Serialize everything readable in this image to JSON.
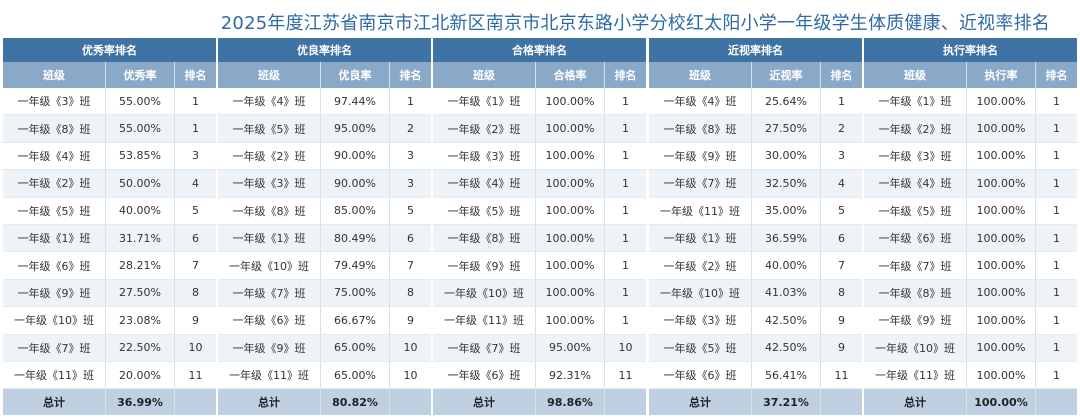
{
  "title": "2025年度江苏省南京市江北新区南京市北京东路小学分校红太阳小学一年级学生体质健康、近视率排名",
  "panels": [
    {
      "header": "优秀率排名",
      "col_class": "班级",
      "col_rate": "优秀率",
      "col_rank": "排名",
      "rows": [
        {
          "cls": "一年级《3》班",
          "rate": "55.00%",
          "rank": "1"
        },
        {
          "cls": "一年级《8》班",
          "rate": "55.00%",
          "rank": "1"
        },
        {
          "cls": "一年级《4》班",
          "rate": "53.85%",
          "rank": "3"
        },
        {
          "cls": "一年级《2》班",
          "rate": "50.00%",
          "rank": "4"
        },
        {
          "cls": "一年级《5》班",
          "rate": "40.00%",
          "rank": "5"
        },
        {
          "cls": "一年级《1》班",
          "rate": "31.71%",
          "rank": "6"
        },
        {
          "cls": "一年级《6》班",
          "rate": "28.21%",
          "rank": "7"
        },
        {
          "cls": "一年级《9》班",
          "rate": "27.50%",
          "rank": "8"
        },
        {
          "cls": "一年级《10》班",
          "rate": "23.08%",
          "rank": "9"
        },
        {
          "cls": "一年级《7》班",
          "rate": "22.50%",
          "rank": "10"
        },
        {
          "cls": "一年级《11》班",
          "rate": "20.00%",
          "rank": "11"
        }
      ],
      "total_label": "总计",
      "total_value": "36.99%"
    },
    {
      "header": "优良率排名",
      "col_class": "班级",
      "col_rate": "优良率",
      "col_rank": "排名",
      "rows": [
        {
          "cls": "一年级《4》班",
          "rate": "97.44%",
          "rank": "1"
        },
        {
          "cls": "一年级《5》班",
          "rate": "95.00%",
          "rank": "2"
        },
        {
          "cls": "一年级《2》班",
          "rate": "90.00%",
          "rank": "3"
        },
        {
          "cls": "一年级《3》班",
          "rate": "90.00%",
          "rank": "3"
        },
        {
          "cls": "一年级《8》班",
          "rate": "85.00%",
          "rank": "5"
        },
        {
          "cls": "一年级《1》班",
          "rate": "80.49%",
          "rank": "6"
        },
        {
          "cls": "一年级《10》班",
          "rate": "79.49%",
          "rank": "7"
        },
        {
          "cls": "一年级《7》班",
          "rate": "75.00%",
          "rank": "8"
        },
        {
          "cls": "一年级《6》班",
          "rate": "66.67%",
          "rank": "9"
        },
        {
          "cls": "一年级《9》班",
          "rate": "65.00%",
          "rank": "10"
        },
        {
          "cls": "一年级《11》班",
          "rate": "65.00%",
          "rank": "10"
        }
      ],
      "total_label": "总计",
      "total_value": "80.82%"
    },
    {
      "header": "合格率排名",
      "col_class": "班级",
      "col_rate": "合格率",
      "col_rank": "排名",
      "rows": [
        {
          "cls": "一年级《1》班",
          "rate": "100.00%",
          "rank": "1"
        },
        {
          "cls": "一年级《2》班",
          "rate": "100.00%",
          "rank": "1"
        },
        {
          "cls": "一年级《3》班",
          "rate": "100.00%",
          "rank": "1"
        },
        {
          "cls": "一年级《4》班",
          "rate": "100.00%",
          "rank": "1"
        },
        {
          "cls": "一年级《5》班",
          "rate": "100.00%",
          "rank": "1"
        },
        {
          "cls": "一年级《8》班",
          "rate": "100.00%",
          "rank": "1"
        },
        {
          "cls": "一年级《9》班",
          "rate": "100.00%",
          "rank": "1"
        },
        {
          "cls": "一年级《10》班",
          "rate": "100.00%",
          "rank": "1"
        },
        {
          "cls": "一年级《11》班",
          "rate": "100.00%",
          "rank": "1"
        },
        {
          "cls": "一年级《7》班",
          "rate": "95.00%",
          "rank": "10"
        },
        {
          "cls": "一年级《6》班",
          "rate": "92.31%",
          "rank": "11"
        }
      ],
      "total_label": "总计",
      "total_value": "98.86%"
    },
    {
      "header": "近视率排名",
      "col_class": "班级",
      "col_rate": "近视率",
      "col_rank": "排名",
      "rows": [
        {
          "cls": "一年级《4》班",
          "rate": "25.64%",
          "rank": "1"
        },
        {
          "cls": "一年级《8》班",
          "rate": "27.50%",
          "rank": "2"
        },
        {
          "cls": "一年级《9》班",
          "rate": "30.00%",
          "rank": "3"
        },
        {
          "cls": "一年级《7》班",
          "rate": "32.50%",
          "rank": "4"
        },
        {
          "cls": "一年级《11》班",
          "rate": "35.00%",
          "rank": "5"
        },
        {
          "cls": "一年级《1》班",
          "rate": "36.59%",
          "rank": "6"
        },
        {
          "cls": "一年级《2》班",
          "rate": "40.00%",
          "rank": "7"
        },
        {
          "cls": "一年级《10》班",
          "rate": "41.03%",
          "rank": "8"
        },
        {
          "cls": "一年级《3》班",
          "rate": "42.50%",
          "rank": "9"
        },
        {
          "cls": "一年级《5》班",
          "rate": "42.50%",
          "rank": "9"
        },
        {
          "cls": "一年级《6》班",
          "rate": "56.41%",
          "rank": "11"
        }
      ],
      "total_label": "总计",
      "total_value": "37.21%"
    },
    {
      "header": "执行率排名",
      "col_class": "班级",
      "col_rate": "执行率",
      "col_rank": "排名",
      "rows": [
        {
          "cls": "一年级《1》班",
          "rate": "100.00%",
          "rank": "1"
        },
        {
          "cls": "一年级《2》班",
          "rate": "100.00%",
          "rank": "1"
        },
        {
          "cls": "一年级《3》班",
          "rate": "100.00%",
          "rank": "1"
        },
        {
          "cls": "一年级《4》班",
          "rate": "100.00%",
          "rank": "1"
        },
        {
          "cls": "一年级《5》班",
          "rate": "100.00%",
          "rank": "1"
        },
        {
          "cls": "一年级《6》班",
          "rate": "100.00%",
          "rank": "1"
        },
        {
          "cls": "一年级《7》班",
          "rate": "100.00%",
          "rank": "1"
        },
        {
          "cls": "一年级《8》班",
          "rate": "100.00%",
          "rank": "1"
        },
        {
          "cls": "一年级《9》班",
          "rate": "100.00%",
          "rank": "1"
        },
        {
          "cls": "一年级《10》班",
          "rate": "100.00%",
          "rank": "1"
        },
        {
          "cls": "一年级《11》班",
          "rate": "100.00%",
          "rank": "1"
        }
      ],
      "total_label": "总计",
      "total_value": "100.00%"
    }
  ]
}
